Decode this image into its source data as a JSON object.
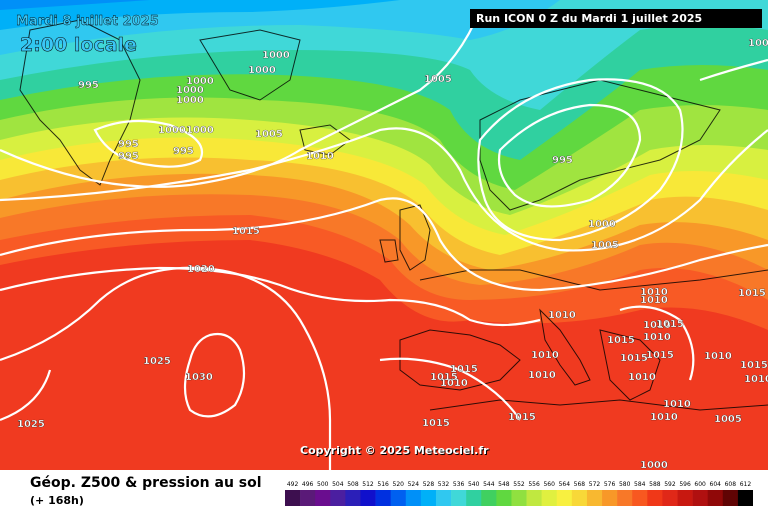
{
  "header": {
    "date_line": "Mardi 8 juillet 2025",
    "time_line": "2:00 locale",
    "run_info": "Run ICON 0 Z du Mardi 1 juillet 2025",
    "copyright": "Copyright © 2025 Meteociel.fr"
  },
  "legend": {
    "title": "Géop. Z500 & pression au sol",
    "subtitle": "(+ 168h)",
    "scale_values": [
      "492",
      "496",
      "500",
      "504",
      "508",
      "512",
      "516",
      "520",
      "524",
      "528",
      "532",
      "536",
      "540",
      "544",
      "548",
      "552",
      "556",
      "560",
      "564",
      "568",
      "572",
      "576",
      "580",
      "584",
      "588",
      "592",
      "596",
      "600",
      "604",
      "608",
      "612"
    ],
    "scale_colors": [
      "#3d0f4f",
      "#5a1a78",
      "#6a0d8f",
      "#4b1fa0",
      "#2b1fb8",
      "#1010cc",
      "#0030e0",
      "#0060f0",
      "#0090f8",
      "#00b0f8",
      "#30c8f0",
      "#40d8d8",
      "#30d0a0",
      "#40d060",
      "#60d840",
      "#90e040",
      "#c0e840",
      "#e0f040",
      "#f8f040",
      "#f8d838",
      "#f8b830",
      "#f89828",
      "#f87828",
      "#f85820",
      "#f03818",
      "#e02818",
      "#c81810",
      "#b01010",
      "#900808",
      "#600404",
      "#000000"
    ]
  },
  "isobars": [
    "995",
    "1000",
    "1000",
    "1000",
    "1000",
    "1000",
    "1000",
    "1000",
    "995",
    "995",
    "995",
    "1005",
    "1005",
    "1010",
    "1015",
    "1020",
    "1025",
    "1030",
    "1025",
    "995",
    "1000",
    "1005",
    "1010",
    "1010",
    "1010",
    "1015",
    "1010",
    "1010",
    "1015",
    "1015",
    "1015",
    "1010",
    "1015",
    "1015",
    "1010",
    "1010",
    "1015",
    "1010",
    "1015",
    "1010",
    "1010",
    "1015",
    "1005",
    "1010",
    "1015",
    "1005",
    "1010",
    "1000"
  ]
}
